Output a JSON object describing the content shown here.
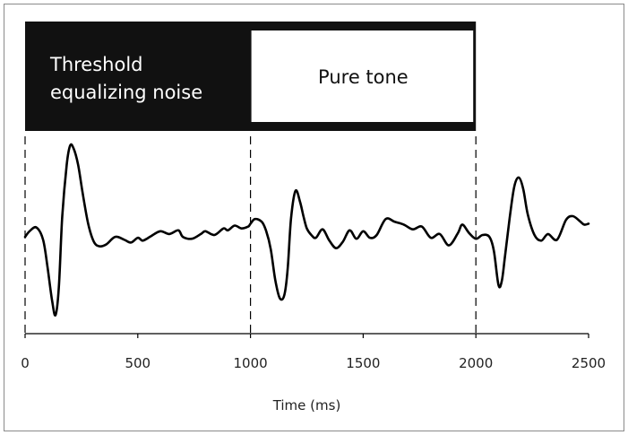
{
  "chart_data": {
    "type": "line",
    "xlabel": "Time (ms)",
    "ylabel": "",
    "title": "",
    "xlim": [
      0,
      2500
    ],
    "xticks": [
      0,
      500,
      1000,
      1500,
      2000,
      2500
    ],
    "ylim": [
      -1,
      1
    ],
    "grid": false,
    "stimulus": {
      "noise_label_line1": "Threshold",
      "noise_label_line2": "equalizing noise",
      "tone_label": "Pure tone",
      "noise_color": "#111111",
      "tone_fill": "#ffffff"
    },
    "markers_ms": [
      0,
      1000,
      2000
    ],
    "series": [
      {
        "color": "#000000",
        "x": [
          0,
          20,
          50,
          80,
          100,
          120,
          135,
          150,
          165,
          185,
          200,
          215,
          235,
          255,
          280,
          305,
          330,
          360,
          400,
          440,
          470,
          500,
          520,
          540,
          560,
          600,
          640,
          680,
          700,
          740,
          780,
          800,
          840,
          880,
          900,
          930,
          960,
          990,
          1000,
          1020,
          1050,
          1070,
          1090,
          1110,
          1130,
          1150,
          1165,
          1180,
          1200,
          1220,
          1235,
          1250,
          1270,
          1290,
          1320,
          1350,
          1380,
          1410,
          1440,
          1470,
          1500,
          1530,
          1560,
          1600,
          1640,
          1680,
          1720,
          1760,
          1800,
          1840,
          1880,
          1920,
          1940,
          1970,
          2000,
          2030,
          2060,
          2080,
          2100,
          2115,
          2130,
          2150,
          2170,
          2190,
          2210,
          2230,
          2260,
          2290,
          2320,
          2360,
          2400,
          2430,
          2460,
          2480,
          2500
        ],
        "y": [
          -0.02,
          0.04,
          0.08,
          -0.05,
          -0.35,
          -0.7,
          -0.85,
          -0.55,
          0.2,
          0.75,
          0.95,
          0.92,
          0.75,
          0.45,
          0.12,
          -0.07,
          -0.12,
          -0.1,
          -0.02,
          -0.05,
          -0.08,
          -0.03,
          -0.06,
          -0.04,
          -0.01,
          0.04,
          0.01,
          0.05,
          -0.02,
          -0.04,
          0.01,
          0.04,
          0.0,
          0.07,
          0.05,
          0.1,
          0.07,
          0.09,
          0.12,
          0.17,
          0.14,
          0.04,
          -0.15,
          -0.48,
          -0.67,
          -0.64,
          -0.36,
          0.18,
          0.47,
          0.35,
          0.2,
          0.07,
          0.0,
          -0.03,
          0.06,
          -0.06,
          -0.14,
          -0.07,
          0.05,
          -0.04,
          0.04,
          -0.03,
          0.0,
          0.17,
          0.14,
          0.11,
          0.06,
          0.09,
          -0.03,
          0.01,
          -0.11,
          0.02,
          0.11,
          0.02,
          -0.04,
          0.0,
          -0.02,
          -0.17,
          -0.53,
          -0.49,
          -0.21,
          0.18,
          0.51,
          0.61,
          0.49,
          0.22,
          0.0,
          -0.06,
          0.01,
          -0.05,
          0.16,
          0.2,
          0.15,
          0.11,
          0.12
        ]
      }
    ]
  }
}
